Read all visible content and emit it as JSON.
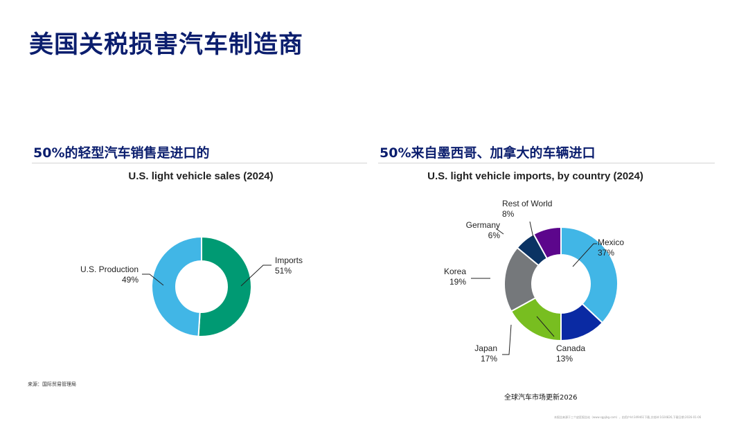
{
  "page": {
    "title": "美国关税损害汽车制造商",
    "source": "来源：国际贸易管理局",
    "footer": "全球汽车市场更新2026",
    "watermark": "本报告来源于三个皮匠报告站（www.sgpjbg.com），由用户Id:349461下载,文档Id:1024826,下载日期:2026-01-06"
  },
  "colors": {
    "title": "#0b1e6e",
    "us_production": "#41b6e6",
    "imports": "#009a73",
    "mexico": "#41b6e6",
    "canada": "#0a2aa3",
    "japan": "#78be20",
    "korea": "#75787b",
    "germany": "#0b3363",
    "rest_of_world": "#5c068c"
  },
  "left": {
    "heading": "50%的轻型汽车销售是进口的"
  },
  "right": {
    "heading": "50%来自墨西哥、加拿大的车辆进口"
  },
  "chart_data": [
    {
      "type": "pie",
      "donut": true,
      "title": "U.S. light vehicle sales (2024)",
      "slices": [
        {
          "label": "Imports",
          "value": 51,
          "display": "51%",
          "color_key": "imports"
        },
        {
          "label": "U.S. Production",
          "value": 49,
          "display": "49%",
          "color_key": "us_production"
        }
      ],
      "legend": "none"
    },
    {
      "type": "pie",
      "donut": true,
      "title": "U.S. light vehicle imports, by country (2024)",
      "slices": [
        {
          "label": "Mexico",
          "value": 37,
          "display": "37%",
          "color_key": "mexico"
        },
        {
          "label": "Canada",
          "value": 13,
          "display": "13%",
          "color_key": "canada"
        },
        {
          "label": "Japan",
          "value": 17,
          "display": "17%",
          "color_key": "japan"
        },
        {
          "label": "Korea",
          "value": 19,
          "display": "19%",
          "color_key": "korea"
        },
        {
          "label": "Germany",
          "value": 6,
          "display": "6%",
          "color_key": "germany"
        },
        {
          "label": "Rest of World",
          "value": 8,
          "display": "8%",
          "color_key": "rest_of_world"
        }
      ],
      "legend": "none"
    }
  ]
}
